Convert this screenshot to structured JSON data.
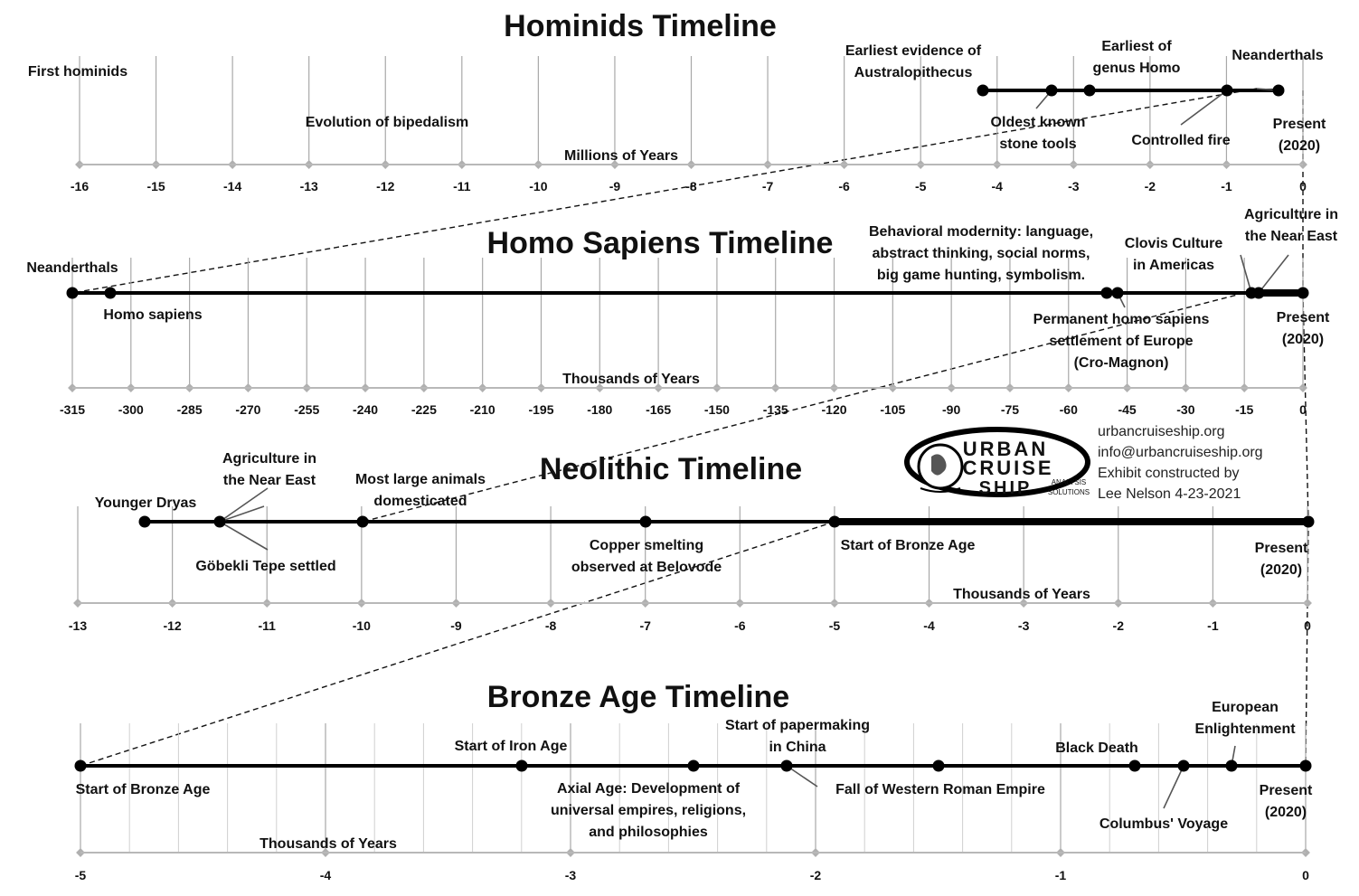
{
  "colors": {
    "main_line": "#000000",
    "grid": "#a8a8a8",
    "minor_grid": "#d0d0d0",
    "axis": "#b8b8b8",
    "text": "#111111"
  },
  "sections": [
    {
      "title": "Hominids Timeline",
      "axis_label": "Millions of Years",
      "ticks": [
        "-16",
        "-15",
        "-14",
        "-13",
        "-12",
        "-11",
        "-10",
        "-9",
        "-8",
        "-7",
        "-6",
        "-5",
        "-4",
        "-3",
        "-2",
        "-1",
        "0"
      ],
      "events": [
        {
          "value": -16,
          "label": [
            "First hominids"
          ]
        },
        {
          "value": -12,
          "label": [
            "Evolution of bipedalism"
          ]
        },
        {
          "value": -4.2,
          "label": [
            "Earliest evidence of",
            "Australopithecus"
          ]
        },
        {
          "value": -3.3,
          "label": [
            "Oldest known",
            "stone tools"
          ]
        },
        {
          "value": -2.8,
          "label": [
            "Earliest of",
            "genus Homo"
          ]
        },
        {
          "value": -1,
          "label": [
            "Controlled fire"
          ]
        },
        {
          "value": -0.3,
          "label": [
            "Neanderthals"
          ]
        },
        {
          "value": 0,
          "label": [
            "Present",
            "(2020)"
          ]
        }
      ]
    },
    {
      "title": "Homo Sapiens Timeline",
      "axis_label": "Thousands of Years",
      "ticks": [
        "-315",
        "-300",
        "-285",
        "-270",
        "-255",
        "-240",
        "-225",
        "-210",
        "-195",
        "-180",
        "-165",
        "-150",
        "-135",
        "-120",
        "-105",
        "-90",
        "-75",
        "-60",
        "-45",
        "-30",
        "-15",
        "0"
      ],
      "events": [
        {
          "value": -315,
          "label": [
            "Neanderthals"
          ]
        },
        {
          "value": -305,
          "label": [
            "Homo sapiens"
          ]
        },
        {
          "value": -50,
          "label": [
            "Behavioral modernity: language,",
            "abstract thinking, social norms,",
            "big game hunting, symbolism."
          ]
        },
        {
          "value": -48,
          "label": [
            "Permanent homo sapiens",
            "settlement of Europe",
            "(Cro-Magnon)"
          ]
        },
        {
          "value": -13,
          "label": [
            "Clovis Culture",
            "in Americas"
          ]
        },
        {
          "value": -12,
          "label": [
            "Agriculture in",
            "the Near East"
          ]
        },
        {
          "value": 0,
          "label": [
            "Present",
            "(2020)"
          ]
        }
      ]
    },
    {
      "title": "Neolithic Timeline",
      "axis_label": "Thousands of Years",
      "ticks": [
        "-13",
        "-12",
        "-11",
        "-10",
        "-9",
        "-8",
        "-7",
        "-6",
        "-5",
        "-4",
        "-3",
        "-2",
        "-1",
        "0"
      ],
      "events": [
        {
          "value": -12.3,
          "label": [
            "Younger Dryas"
          ]
        },
        {
          "value": -11.5,
          "label": [
            "Agriculture in",
            "the Near East"
          ]
        },
        {
          "value": -11.5,
          "label": [
            "Göbekli Tepe settled"
          ]
        },
        {
          "value": -10,
          "label": [
            "Most large animals",
            "domesticated"
          ]
        },
        {
          "value": -7,
          "label": [
            "Copper smelting",
            "observed at Belovode"
          ]
        },
        {
          "value": -5,
          "label": [
            "Start of Bronze Age"
          ]
        },
        {
          "value": 0,
          "label": [
            "Present",
            "(2020)"
          ]
        }
      ]
    },
    {
      "title": "Bronze Age Timeline",
      "axis_label": "Thousands of Years",
      "ticks": [
        "-5",
        "-4",
        "-3",
        "-2",
        "-1",
        "0"
      ],
      "events": [
        {
          "value": -5,
          "label": [
            "Start of Bronze Age"
          ]
        },
        {
          "value": -3.2,
          "label": [
            "Start of Iron Age"
          ]
        },
        {
          "value": -2.5,
          "label": [
            "Axial Age: Development of",
            "universal empires, religions,",
            "and philosophies"
          ]
        },
        {
          "value": -2.1,
          "label": [
            "Start of papermaking",
            "in China"
          ]
        },
        {
          "value": -1.5,
          "label": [
            "Fall of Western Roman Empire"
          ]
        },
        {
          "value": -0.7,
          "label": [
            "Black Death"
          ]
        },
        {
          "value": -0.5,
          "label": [
            "Columbus' Voyage"
          ]
        },
        {
          "value": -0.3,
          "label": [
            "European",
            "Enlightenment"
          ]
        },
        {
          "value": 0,
          "label": [
            "Present",
            "(2020)"
          ]
        }
      ]
    }
  ],
  "logo": {
    "line1": "URBAN",
    "line2": "CRUISE",
    "line3": "SHIP",
    "sub1": "ANALYSIS",
    "sub2": "SOLUTIONS"
  },
  "info": [
    "urbancruiseship.org",
    "info@urbancruiseship.org",
    "Exhibit constructed by",
    "Lee Nelson 4-23-2021"
  ]
}
